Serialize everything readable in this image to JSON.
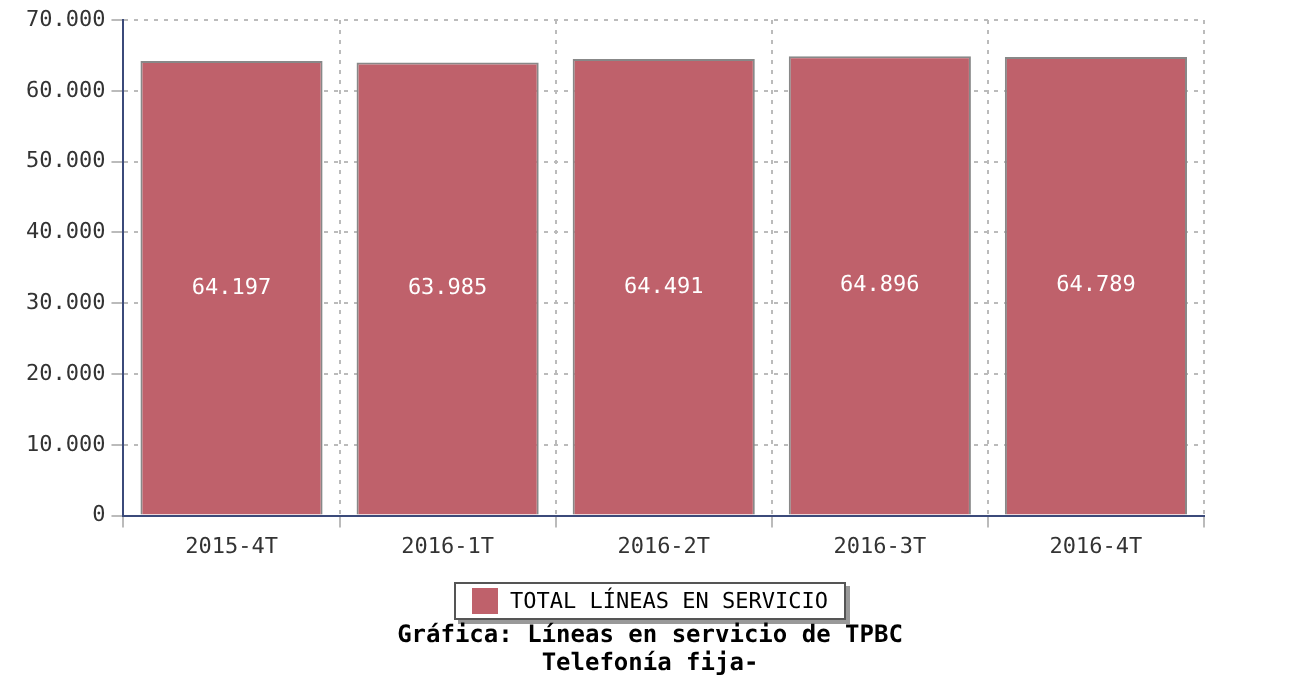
{
  "chart_data": {
    "type": "bar",
    "title": "Gráfica: Líneas en servicio de TPBC",
    "subtitle": "Telefonía fija-",
    "categories": [
      "2015-4T",
      "2016-1T",
      "2016-2T",
      "2016-3T",
      "2016-4T"
    ],
    "series": [
      {
        "name": "TOTAL LÍNEAS EN SERVICIO",
        "color": "#bf616b",
        "values": [
          64197,
          63985,
          64491,
          64896,
          64789
        ],
        "value_labels": [
          "64.197",
          "63.985",
          "64.491",
          "64.896",
          "64.789"
        ]
      }
    ],
    "ylim": [
      0,
      70000
    ],
    "yticks": [
      {
        "value": 0,
        "label": "0"
      },
      {
        "value": 10000,
        "label": "10.000"
      },
      {
        "value": 20000,
        "label": "20.000"
      },
      {
        "value": 30000,
        "label": "30.000"
      },
      {
        "value": 40000,
        "label": "40.000"
      },
      {
        "value": 50000,
        "label": "50.000"
      },
      {
        "value": 60000,
        "label": "60.000"
      },
      {
        "value": 70000,
        "label": "70.000"
      }
    ],
    "grid": true,
    "legend": "bottom"
  }
}
